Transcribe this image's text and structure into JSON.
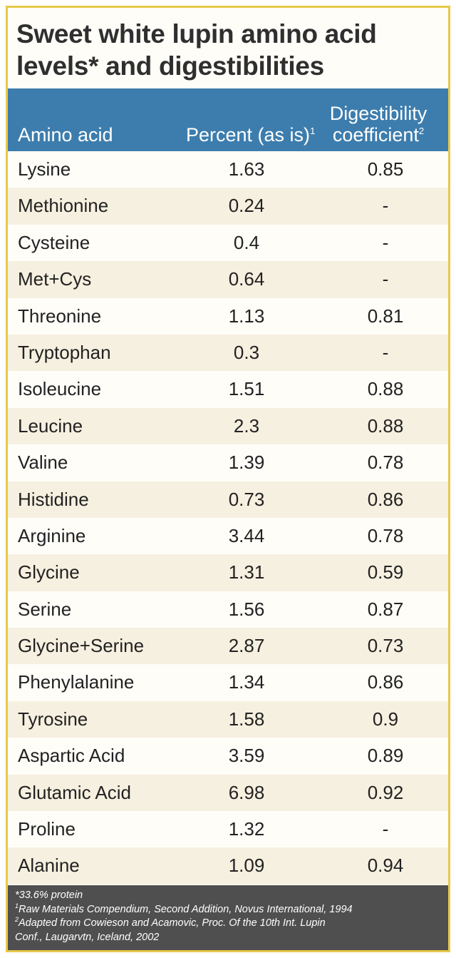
{
  "title": "Sweet white lupin amino acid levels* and digestibilities",
  "chart_data": {
    "type": "table",
    "columns": [
      "Amino acid",
      "Percent (as is)",
      "Digestibility coefficient"
    ],
    "column_notes": [
      "",
      "1",
      "2"
    ],
    "rows": [
      [
        "Lysine",
        "1.63",
        "0.85"
      ],
      [
        "Methionine",
        "0.24",
        "-"
      ],
      [
        "Cysteine",
        "0.4",
        "-"
      ],
      [
        "Met+Cys",
        "0.64",
        "-"
      ],
      [
        "Threonine",
        "1.13",
        "0.81"
      ],
      [
        "Tryptophan",
        "0.3",
        "-"
      ],
      [
        "Isoleucine",
        "1.51",
        "0.88"
      ],
      [
        "Leucine",
        "2.3",
        "0.88"
      ],
      [
        "Valine",
        "1.39",
        "0.78"
      ],
      [
        "Histidine",
        "0.73",
        "0.86"
      ],
      [
        "Arginine",
        "3.44",
        "0.78"
      ],
      [
        "Glycine",
        "1.31",
        "0.59"
      ],
      [
        "Serine",
        "1.56",
        "0.87"
      ],
      [
        "Glycine+Serine",
        "2.87",
        "0.73"
      ],
      [
        "Phenylalanine",
        "1.34",
        "0.86"
      ],
      [
        "Tyrosine",
        "1.58",
        "0.9"
      ],
      [
        "Aspartic Acid",
        "3.59",
        "0.89"
      ],
      [
        "Glutamic Acid",
        "6.98",
        "0.92"
      ],
      [
        "Proline",
        "1.32",
        "-"
      ],
      [
        "Alanine",
        "1.09",
        "0.94"
      ]
    ]
  },
  "footnotes": {
    "protein": "*33.6% protein",
    "note1_mark": "1",
    "note1": "Raw Materials Compendium, Second Addition, Novus International, 1994",
    "note2_mark": "2",
    "note2_line1": "Adapted from Cowieson and Acamovic, Proc. Of the 10th Int. Lupin",
    "note2_line2": "Conf., Laugarvtn, Iceland, 2002"
  },
  "colors": {
    "border": "#e8c94a",
    "header": "#3d7dad",
    "stripe": "#f6f0e0",
    "footer": "#4f4f4f"
  }
}
